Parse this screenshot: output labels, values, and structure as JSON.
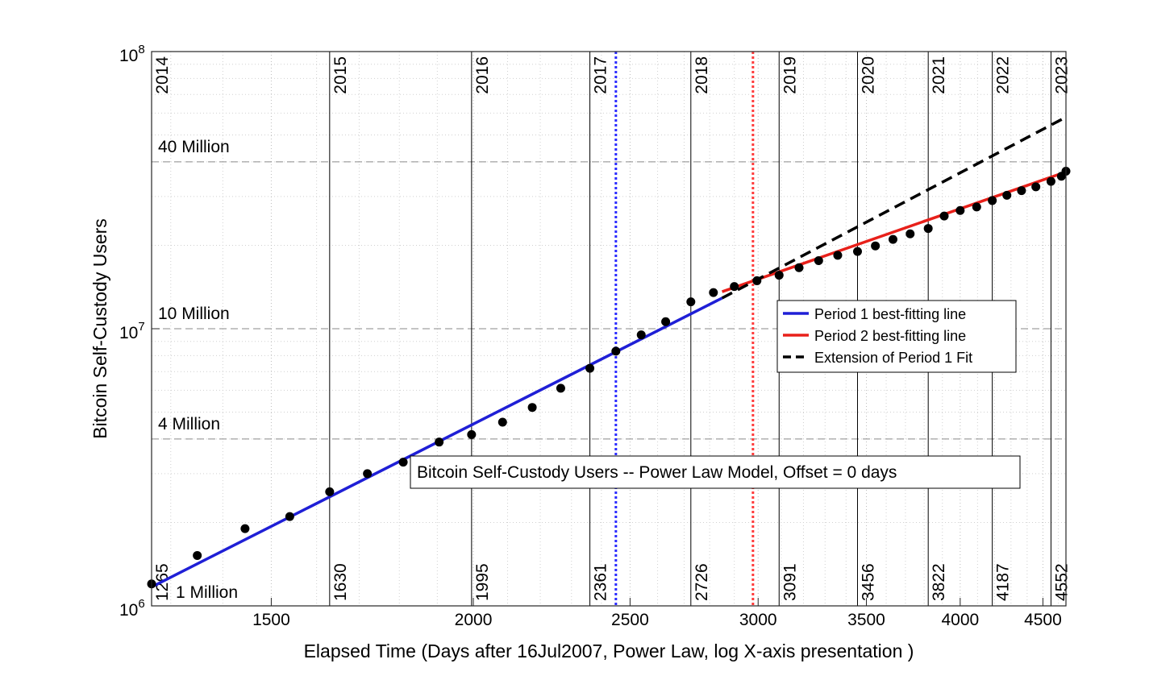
{
  "chart_data": {
    "type": "scatter",
    "title": "",
    "xlabel": "Elapsed Time (Days after 16Jul2007, Power Law, log X-axis presentation )",
    "ylabel": "Bitcoin Self-Custody Users",
    "x_scale": "log",
    "y_scale": "log",
    "xlim": [
      1265,
      4650
    ],
    "ylim": [
      1000000,
      100000000
    ],
    "x_ticks": [
      1500,
      2000,
      2500,
      3000,
      3500,
      4000,
      4500
    ],
    "x_tick_labels": [
      "1500",
      "2000",
      "2500",
      "3000",
      "3500",
      "4000",
      "4500"
    ],
    "y_ticks": [
      1000000,
      10000000,
      100000000
    ],
    "y_tick_labels": [
      {
        "base": "10",
        "exp": "6"
      },
      {
        "base": "10",
        "exp": "7"
      },
      {
        "base": "10",
        "exp": "8"
      }
    ],
    "grid": true,
    "year_lines": [
      {
        "day": 1265,
        "year": "2014",
        "day_label": "1265"
      },
      {
        "day": 1630,
        "year": "2015",
        "day_label": "1630"
      },
      {
        "day": 1995,
        "year": "2016",
        "day_label": "1995"
      },
      {
        "day": 2361,
        "year": "2017",
        "day_label": "2361"
      },
      {
        "day": 2726,
        "year": "2018",
        "day_label": "2726"
      },
      {
        "day": 3091,
        "year": "2019",
        "day_label": "3091"
      },
      {
        "day": 3456,
        "year": "2020",
        "day_label": "3456"
      },
      {
        "day": 3822,
        "year": "2021",
        "day_label": "3822"
      },
      {
        "day": 4187,
        "year": "2022",
        "day_label": "4187"
      },
      {
        "day": 4552,
        "year": "2023",
        "day_label": "4552"
      }
    ],
    "reference_lines": [
      {
        "value": 40000000,
        "label": "40 Million"
      },
      {
        "value": 10000000,
        "label": "10 Million"
      },
      {
        "value": 4000000,
        "label": "4 Million"
      },
      {
        "value": 1000000,
        "label": "1 Million"
      }
    ],
    "vertical_markers": [
      {
        "day": 2450,
        "color": "#2b2bff"
      },
      {
        "day": 2978,
        "color": "#ff3b3b"
      }
    ],
    "points": [
      {
        "x": 1265,
        "y": 1200000
      },
      {
        "x": 1350,
        "y": 1520000
      },
      {
        "x": 1445,
        "y": 1900000
      },
      {
        "x": 1540,
        "y": 2100000
      },
      {
        "x": 1630,
        "y": 2580000
      },
      {
        "x": 1720,
        "y": 3000000
      },
      {
        "x": 1810,
        "y": 3300000
      },
      {
        "x": 1905,
        "y": 3900000
      },
      {
        "x": 1995,
        "y": 4150000
      },
      {
        "x": 2085,
        "y": 4600000
      },
      {
        "x": 2175,
        "y": 5200000
      },
      {
        "x": 2265,
        "y": 6100000
      },
      {
        "x": 2361,
        "y": 7200000
      },
      {
        "x": 2450,
        "y": 8300000
      },
      {
        "x": 2540,
        "y": 9500000
      },
      {
        "x": 2630,
        "y": 10600000
      },
      {
        "x": 2726,
        "y": 12500000
      },
      {
        "x": 2815,
        "y": 13500000
      },
      {
        "x": 2900,
        "y": 14200000
      },
      {
        "x": 2995,
        "y": 14900000
      },
      {
        "x": 3091,
        "y": 15600000
      },
      {
        "x": 3180,
        "y": 16600000
      },
      {
        "x": 3270,
        "y": 17600000
      },
      {
        "x": 3360,
        "y": 18400000
      },
      {
        "x": 3456,
        "y": 19000000
      },
      {
        "x": 3545,
        "y": 19900000
      },
      {
        "x": 3635,
        "y": 21000000
      },
      {
        "x": 3725,
        "y": 22000000
      },
      {
        "x": 3822,
        "y": 23000000
      },
      {
        "x": 3910,
        "y": 25500000
      },
      {
        "x": 4000,
        "y": 26700000
      },
      {
        "x": 4095,
        "y": 27500000
      },
      {
        "x": 4187,
        "y": 29000000
      },
      {
        "x": 4275,
        "y": 30300000
      },
      {
        "x": 4365,
        "y": 31500000
      },
      {
        "x": 4455,
        "y": 32500000
      },
      {
        "x": 4552,
        "y": 34000000
      },
      {
        "x": 4620,
        "y": 35500000
      },
      {
        "x": 4650,
        "y": 37000000
      }
    ],
    "series": [
      {
        "name": "Period 1 best-fitting line",
        "color": "#1f1fd6",
        "style": "solid",
        "x": [
          1265,
          2850
        ],
        "y": [
          1170000,
          12900000
        ]
      },
      {
        "name": "Period 2 best-fitting line",
        "color": "#e8201a",
        "style": "solid",
        "x": [
          2850,
          4650
        ],
        "y": [
          13600000,
          36800000
        ]
      },
      {
        "name": "Extension of Period 1 Fit",
        "color": "#000000",
        "style": "dashed",
        "x": [
          2850,
          4650
        ],
        "y": [
          12900000,
          58000000
        ]
      }
    ],
    "legend": {
      "placement": "inside-right",
      "entries": [
        "Period 1 best-fitting line",
        "Period 2 best-fitting line",
        "Extension of Period 1 Fit"
      ]
    },
    "annotation": "Bitcoin Self-Custody Users -- Power Law Model, Offset = 0 days"
  }
}
